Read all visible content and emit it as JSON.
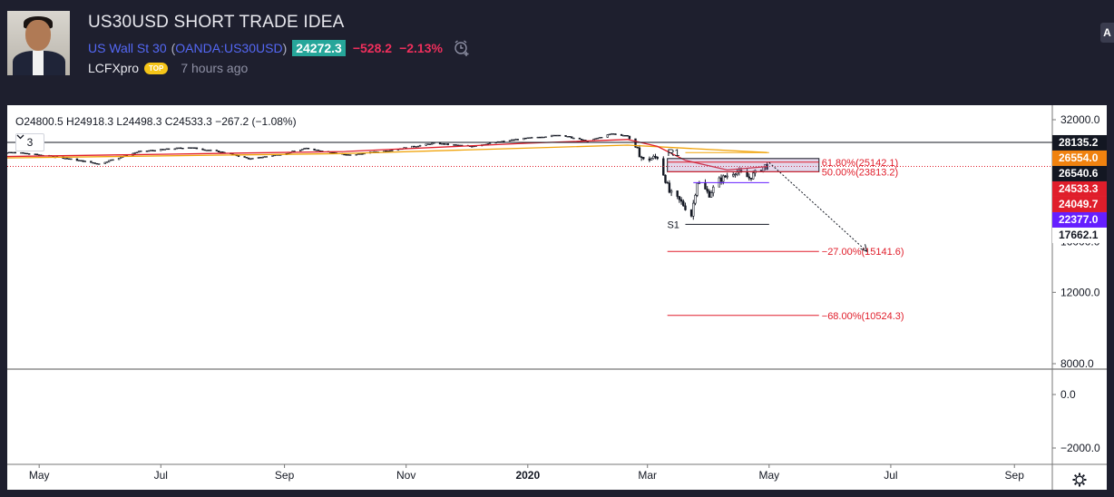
{
  "header": {
    "title": "US30USD SHORT TRADE IDEA",
    "symbol_name": "US Wall St 30",
    "paren_open": "(",
    "symbol_code": "OANDA:US30USD",
    "paren_close": ")",
    "price": "24272.3",
    "change": "−528.2",
    "change_pct": "−2.13%",
    "author": "LCFXpro",
    "author_badge": "TOP",
    "published": "7 hours ago",
    "side_button": "A"
  },
  "legend": {
    "ohlc": "O24800.5  H24918.3  L24498.3  C24533.3  −267.2 (−1.08%)",
    "indicator_count": "3"
  },
  "chart_data": {
    "type": "candlestick",
    "x_ticks": [
      "May",
      "Jul",
      "Sep",
      "Nov",
      "2020",
      "Mar",
      "May",
      "Jul",
      "Sep"
    ],
    "y_ticks_main": [
      "32000.0",
      "16000.0",
      "12000.0",
      "8000.0"
    ],
    "y_ticks_lower": [
      "0.0",
      "−2000.0"
    ],
    "y_scale": "log",
    "price_labels": [
      {
        "value": "28135.2",
        "color": "#131722"
      },
      {
        "value": "26554.0",
        "color": "#f0820f"
      },
      {
        "value": "26540.6",
        "color": "#131722"
      },
      {
        "value": "24533.3",
        "color": "#e01e2b"
      },
      {
        "value": "24049.7",
        "color": "#e01e2b"
      },
      {
        "value": "22377.0",
        "color": "#651fff"
      },
      {
        "value": "17662.1",
        "color": "#131722"
      }
    ],
    "levels": [
      {
        "label": "R1",
        "value": 26554.0
      },
      {
        "label": "S1",
        "value": 17662.1
      }
    ],
    "fib_levels": [
      {
        "label": "61.80%(25142.1)",
        "value": 25142.1
      },
      {
        "label": "50.00%(23813.2)",
        "value": 23813.2
      },
      {
        "label": "−27.00%(15141.6)",
        "value": 15141.6
      },
      {
        "label": "−68.00%(10524.3)",
        "value": 10524.3
      }
    ],
    "price_path": [
      [
        "2019-04-01",
        26400
      ],
      [
        "2019-04-20",
        26550
      ],
      [
        "2019-05-10",
        25900
      ],
      [
        "2019-05-31",
        24900
      ],
      [
        "2019-06-20",
        26700
      ],
      [
        "2019-07-15",
        27350
      ],
      [
        "2019-08-01",
        26600
      ],
      [
        "2019-08-15",
        25600
      ],
      [
        "2019-09-01",
        26400
      ],
      [
        "2019-09-12",
        27200
      ],
      [
        "2019-10-03",
        26150
      ],
      [
        "2019-10-25",
        26950
      ],
      [
        "2019-11-15",
        28000
      ],
      [
        "2019-12-03",
        27500
      ],
      [
        "2019-12-27",
        28650
      ],
      [
        "2020-01-17",
        29350
      ],
      [
        "2020-01-31",
        28300
      ],
      [
        "2020-02-12",
        29550
      ],
      [
        "2020-02-20",
        29200
      ],
      [
        "2020-02-28",
        25400
      ],
      [
        "2020-03-06",
        25900
      ],
      [
        "2020-03-12",
        21200
      ],
      [
        "2020-03-18",
        20000
      ],
      [
        "2020-03-23",
        18600
      ],
      [
        "2020-03-26",
        22500
      ],
      [
        "2020-04-01",
        20950
      ],
      [
        "2020-04-06",
        22700
      ],
      [
        "2020-04-14",
        23900
      ],
      [
        "2020-04-21",
        23000
      ],
      [
        "2020-04-29",
        24650
      ],
      [
        "2020-04-30",
        24533
      ]
    ],
    "ma_red": [
      [
        "2019-04-01",
        25900
      ],
      [
        "2019-07-01",
        26300
      ],
      [
        "2019-10-01",
        26700
      ],
      [
        "2020-01-01",
        28000
      ],
      [
        "2020-02-20",
        28600
      ],
      [
        "2020-03-06",
        27500
      ],
      [
        "2020-03-20",
        25400
      ],
      [
        "2020-04-10",
        24050
      ],
      [
        "2020-04-30",
        24533
      ]
    ],
    "ma_orange": [
      [
        "2019-04-01",
        25700
      ],
      [
        "2019-10-01",
        26400
      ],
      [
        "2020-02-20",
        27700
      ],
      [
        "2020-04-30",
        26554
      ]
    ]
  }
}
